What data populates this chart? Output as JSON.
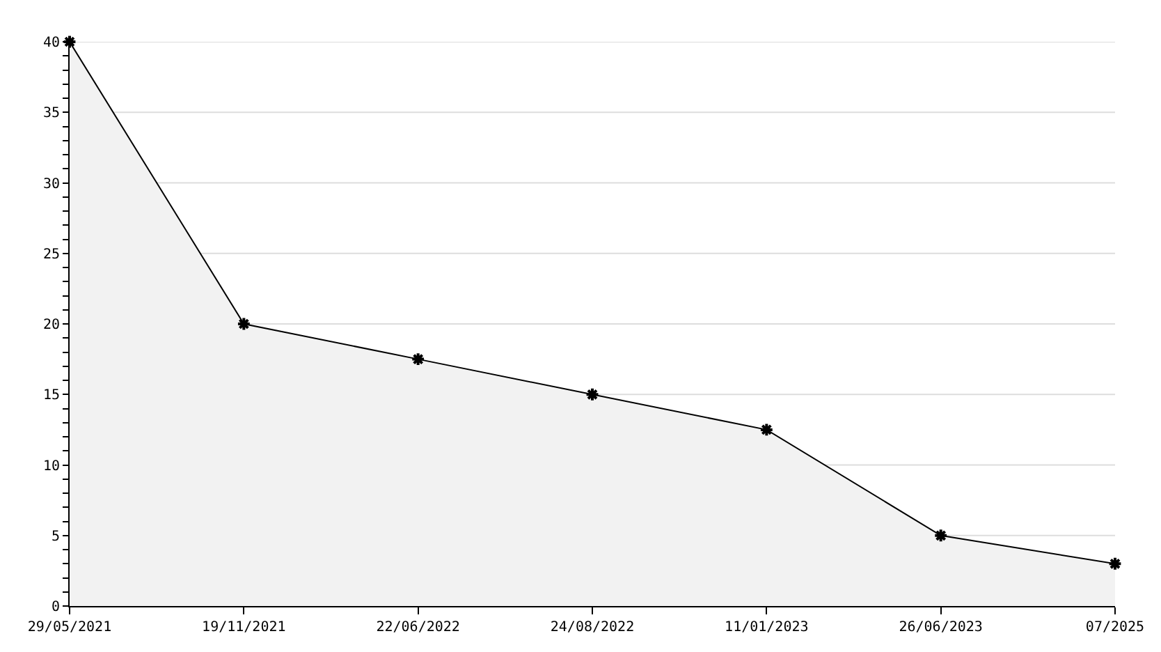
{
  "chart_data": {
    "type": "area",
    "categories": [
      "29/05/2021",
      "19/11/2021",
      "22/06/2022",
      "24/08/2022",
      "11/01/2023",
      "26/06/2023",
      "07/2025"
    ],
    "series": [
      {
        "color": "#000000",
        "values": [
          40,
          20,
          17.5,
          15,
          12.5,
          5,
          3
        ]
      }
    ],
    "ylim": [
      0,
      40
    ],
    "yticks": [
      0,
      {
        "value": 1,
        "label": null
      },
      {
        "value": 2,
        "label": null
      },
      {
        "value": 3,
        "label": null
      },
      {
        "value": 4,
        "label": null
      },
      5,
      {
        "value": 6,
        "label": null
      },
      {
        "value": 7,
        "label": null
      },
      {
        "value": 8,
        "label": null
      },
      {
        "value": 9,
        "label": null
      },
      10,
      {
        "value": 11,
        "label": null
      },
      {
        "value": 12,
        "label": null
      },
      {
        "value": 13,
        "label": null
      },
      {
        "value": 14,
        "label": null
      },
      15,
      {
        "value": 16,
        "label": null
      },
      {
        "value": 17,
        "label": null
      },
      {
        "value": 18,
        "label": null
      },
      {
        "value": 19,
        "label": null
      },
      20,
      {
        "value": 21,
        "label": null
      },
      {
        "value": 22,
        "label": null
      },
      {
        "value": 23,
        "label": null
      },
      {
        "value": 24,
        "label": null
      },
      25,
      {
        "value": 26,
        "label": null
      },
      {
        "value": 27,
        "label": null
      },
      {
        "value": 28,
        "label": null
      },
      {
        "value": 29,
        "label": null
      },
      30,
      {
        "value": 31,
        "label": null
      },
      {
        "value": 32,
        "label": null
      },
      {
        "value": 33,
        "label": null
      },
      {
        "value": 34,
        "label": null
      },
      35,
      {
        "value": 36,
        "label": null
      },
      {
        "value": 37,
        "label": null
      },
      {
        "value": 38,
        "label": null
      },
      {
        "value": 39,
        "label": null
      },
      40
    ],
    "grid": "y",
    "marker": "cross",
    "line_style": "solid"
  }
}
